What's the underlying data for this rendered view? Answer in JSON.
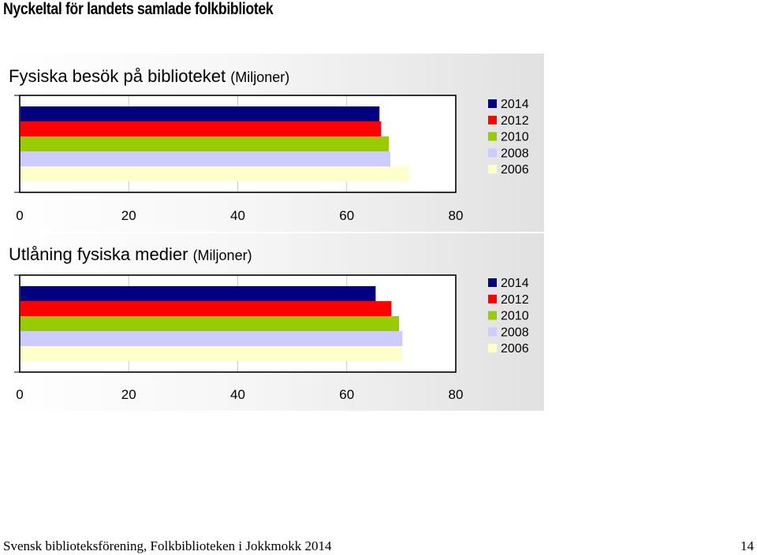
{
  "page": {
    "title": "Nyckeltal för landets samlade folkbibliotek",
    "footer_left": "Svensk biblioteksförening, Folkbiblioteken i Jokkmokk 2014",
    "page_number": "14"
  },
  "chart_data": [
    {
      "type": "bar",
      "orientation": "horizontal",
      "title": "Fysiska besök på biblioteket",
      "title_unit": "(Miljoner)",
      "xlabel": "",
      "ylabel": "",
      "xlim": [
        0,
        80
      ],
      "xticks": [
        "0",
        "20",
        "40",
        "60",
        "80"
      ],
      "grid": true,
      "legend_position": "right",
      "series": [
        {
          "name": "2014",
          "color": "#000080",
          "values": [
            66
          ]
        },
        {
          "name": "2012",
          "color": "#ff0000",
          "values": [
            66.3
          ]
        },
        {
          "name": "2010",
          "color": "#99cc00",
          "values": [
            67.7
          ]
        },
        {
          "name": "2008",
          "color": "#ccccff",
          "values": [
            68
          ]
        },
        {
          "name": "2006",
          "color": "#ffffcc",
          "values": [
            71.4
          ]
        }
      ]
    },
    {
      "type": "bar",
      "orientation": "horizontal",
      "title": "Utlåning fysiska medier",
      "title_unit": "(Miljoner)",
      "xlabel": "",
      "ylabel": "",
      "xlim": [
        0,
        80
      ],
      "xticks": [
        "0",
        "20",
        "40",
        "60",
        "80"
      ],
      "grid": true,
      "legend_position": "right",
      "series": [
        {
          "name": "2014",
          "color": "#000080",
          "values": [
            65.3
          ]
        },
        {
          "name": "2012",
          "color": "#ff0000",
          "values": [
            68.2
          ]
        },
        {
          "name": "2010",
          "color": "#99cc00",
          "values": [
            69.6
          ]
        },
        {
          "name": "2008",
          "color": "#ccccff",
          "values": [
            70.2
          ]
        },
        {
          "name": "2006",
          "color": "#ffffcc",
          "values": [
            70.2
          ]
        }
      ]
    }
  ]
}
